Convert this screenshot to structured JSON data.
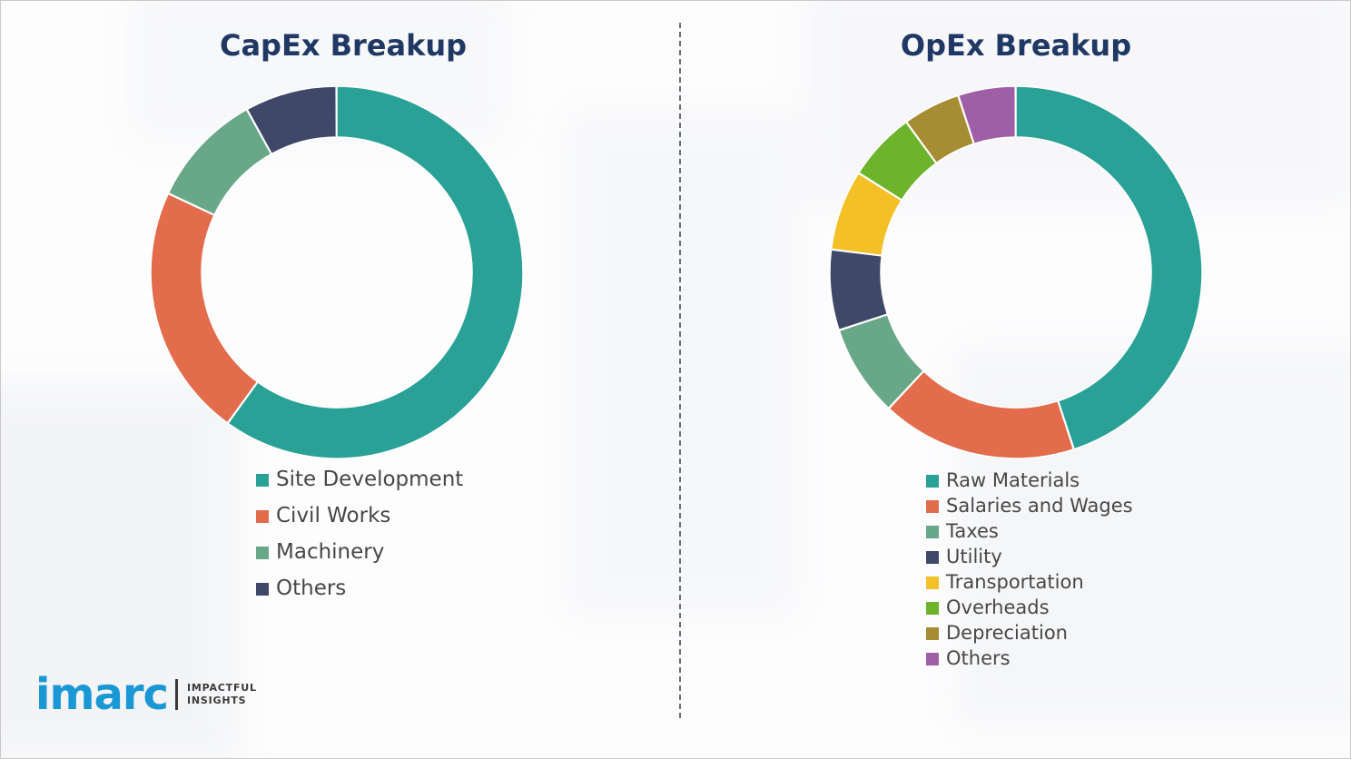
{
  "chart_data": [
    {
      "type": "pie",
      "subtype": "donut",
      "title": "CapEx Breakup",
      "labels": [
        "Site Development",
        "Civil Works",
        "Machinery",
        "Others"
      ],
      "values": [
        60,
        22,
        10,
        8
      ],
      "colors": [
        "#2aa196",
        "#e36c4c",
        "#68a787",
        "#3f4868"
      ],
      "start_angle": "top",
      "direction": "clockwise",
      "legend_position": "bottom-left",
      "units": "percent-share"
    },
    {
      "type": "pie",
      "subtype": "donut",
      "title": "OpEx Breakup",
      "labels": [
        "Raw Materials",
        "Salaries and Wages",
        "Taxes",
        "Utility",
        "Transportation",
        "Overheads",
        "Depreciation",
        "Others"
      ],
      "values": [
        45,
        17,
        8,
        7,
        7,
        6,
        5,
        5
      ],
      "colors": [
        "#2aa196",
        "#e36c4c",
        "#68a787",
        "#3f4868",
        "#f3c027",
        "#6db32b",
        "#a68c33",
        "#9f5fa6"
      ],
      "start_angle": "top",
      "direction": "clockwise",
      "legend_position": "bottom-left",
      "units": "percent-share"
    }
  ],
  "logo": {
    "wordmark": "imarc",
    "tagline_line1": "IMPACTFUL",
    "tagline_line2": "INSIGHTS"
  }
}
